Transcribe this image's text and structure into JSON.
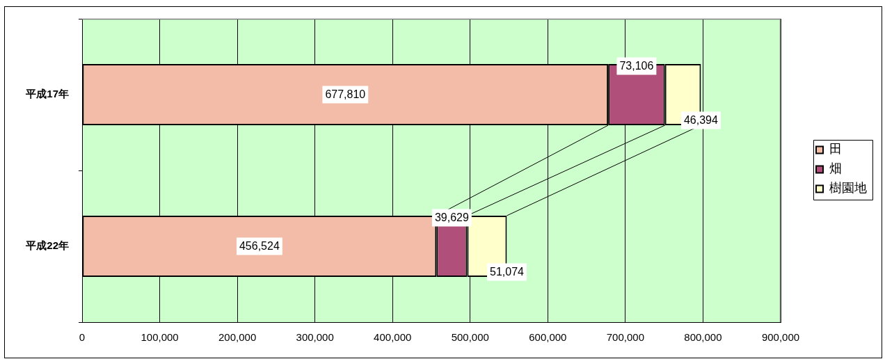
{
  "chart_data": {
    "type": "bar",
    "orientation": "horizontal",
    "stacked": true,
    "categories": [
      "平成17年",
      "平成22年"
    ],
    "series": [
      {
        "name": "田",
        "color": "#f2bca8",
        "values": [
          677810,
          456524
        ],
        "value_labels": [
          "677,810",
          "456,524"
        ]
      },
      {
        "name": "畑",
        "color": "#b0507a",
        "values": [
          73106,
          39629
        ],
        "value_labels": [
          "73,106",
          "39,629"
        ]
      },
      {
        "name": "樹園地",
        "color": "#ffffcc",
        "values": [
          46394,
          51074
        ],
        "value_labels": [
          "46,394",
          "51,074"
        ]
      }
    ],
    "xlim": [
      0,
      900000
    ],
    "xticks": [
      0,
      {
        "value": 100000,
        "label": "100,000"
      },
      {
        "value": 200000,
        "label": "200,000"
      },
      {
        "value": 300000,
        "label": "300,000"
      },
      {
        "value": 400000,
        "label": "400,000"
      },
      {
        "value": 500000,
        "label": "500,000"
      },
      {
        "value": 600000,
        "label": "600,000"
      },
      {
        "value": 700000,
        "label": "700,000"
      },
      {
        "value": 800000,
        "label": "800,000"
      },
      {
        "value": 900000,
        "label": "900,000"
      }
    ],
    "grid": "x",
    "legend": "right"
  }
}
